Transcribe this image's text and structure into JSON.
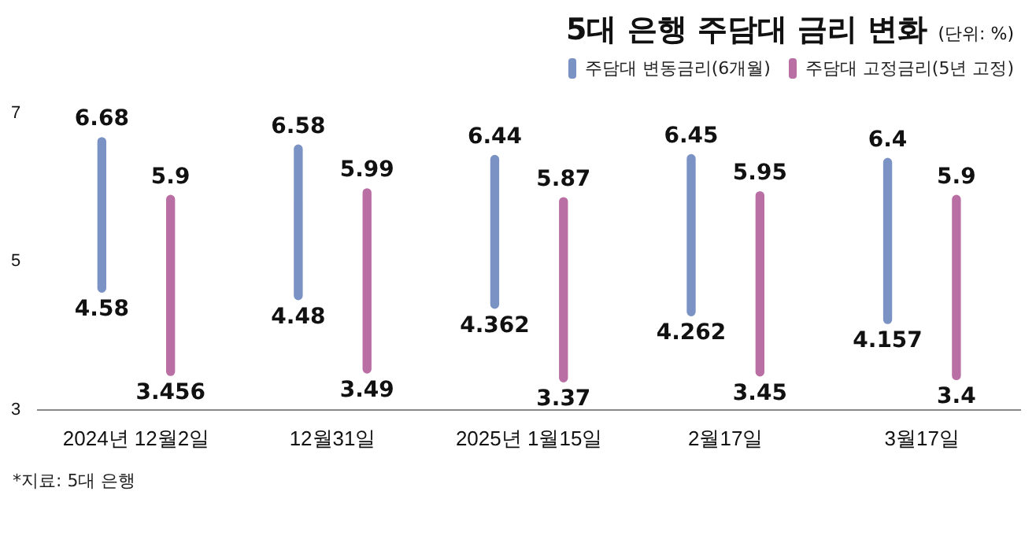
{
  "chart_data": {
    "type": "bar",
    "title": "5대 은행 주담대 금리 변화",
    "subtitle": "(단위: %)",
    "categories": [
      "2024년 12월2일",
      "12월31일",
      "2025년 1월15일",
      "2월17일",
      "3월17일"
    ],
    "series": [
      {
        "name": "주담대 변동금리(6개월)",
        "color": "#7b93c4",
        "base": [
          4.58,
          4.48,
          4.362,
          4.262,
          4.157
        ],
        "values": [
          2.1,
          2.1,
          2.078,
          2.188,
          2.243
        ],
        "value_labels": [
          "6.68",
          "6.58",
          "6.44",
          "6.45",
          "6.4"
        ]
      },
      {
        "name": "주담대 고정금리(5년 고정)",
        "color": "#b96fa4",
        "base": [
          3.456,
          3.49,
          3.37,
          3.45,
          3.4
        ],
        "values": [
          2.444,
          2.5,
          2.5,
          2.5,
          2.5
        ],
        "value_labels": [
          "5.9",
          "5.99",
          "5.87",
          "5.95",
          "5.9"
        ]
      }
    ],
    "ylim": [
      3,
      7
    ],
    "yticks": [
      3,
      5,
      7
    ],
    "grid": false,
    "legend": "top right",
    "annotations": [
      "*지료: 5대 은행",
      {
        "text": "4.58",
        "y": 4.58
      },
      {
        "text": "4.48",
        "y": 4.48
      },
      {
        "text": "4.362",
        "y": 4.362
      },
      {
        "text": "4.262",
        "y": 4.262
      },
      {
        "text": "4.157",
        "y": 4.157
      },
      {
        "text": "3.456",
        "y": 3.456
      },
      {
        "text": "3.49",
        "y": 3.49
      },
      {
        "text": "3.37",
        "y": 3.37
      },
      {
        "text": "3.45",
        "y": 3.45
      },
      {
        "text": "3.4",
        "y": 3.4
      }
    ]
  }
}
